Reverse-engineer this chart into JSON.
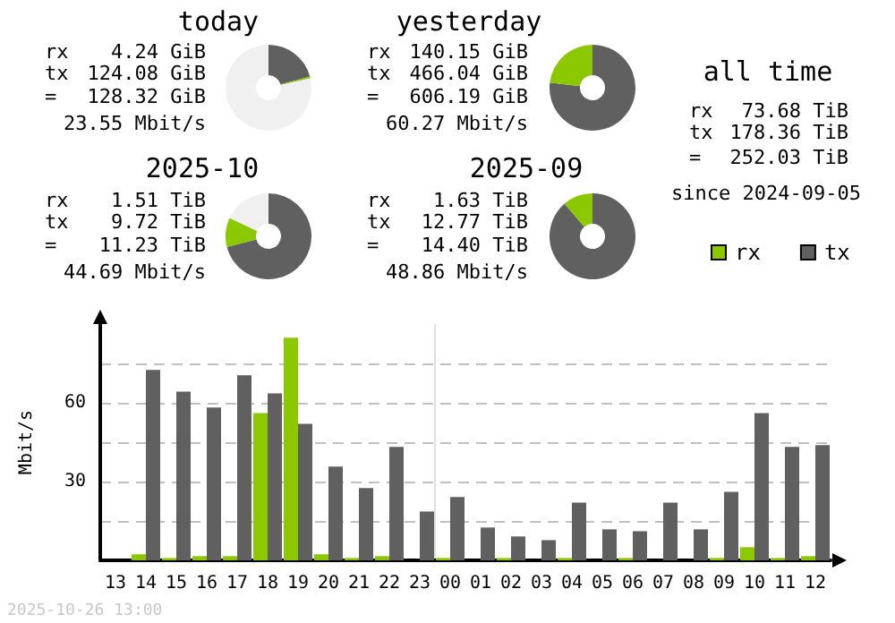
{
  "chart_data": [
    {
      "type": "donut",
      "title": "today",
      "categories": [
        null,
        null,
        null
      ],
      "values": [
        20.8,
        0.7,
        78.5
      ],
      "colors": [
        "#606060",
        "#8bc800",
        "#f0f0f0"
      ],
      "annotations": [
        "rx",
        "4.24 GiB",
        "tx",
        "124.08 GiB",
        "=",
        "128.32 GiB",
        "23.55 Mbit/s"
      ]
    },
    {
      "type": "donut",
      "title": "yesterday",
      "categories": [
        null,
        null
      ],
      "values": [
        76.9,
        23.1
      ],
      "colors": [
        "#606060",
        "#8bc800"
      ],
      "annotations": [
        "rx",
        "140.15 GiB",
        "tx",
        "466.04 GiB",
        "=",
        "606.19 GiB",
        "60.27 Mbit/s"
      ]
    },
    {
      "type": "other",
      "title": "all time",
      "annotations": [
        "rx",
        "73.68 TiB",
        "tx",
        "178.36 TiB",
        "=",
        "252.03 TiB",
        "since 2024-09-05"
      ]
    },
    {
      "type": "donut",
      "title": "2025-10",
      "categories": [
        null,
        null,
        null
      ],
      "values": [
        71.0,
        11.0,
        18.0
      ],
      "colors": [
        "#606060",
        "#8bc800",
        "#f0f0f0"
      ],
      "annotations": [
        "rx",
        "1.51 TiB",
        "tx",
        "9.72 TiB",
        "=",
        "11.23 TiB",
        "44.69 Mbit/s"
      ]
    },
    {
      "type": "donut",
      "title": "2025-09",
      "categories": [
        null,
        null
      ],
      "values": [
        88.7,
        11.3
      ],
      "colors": [
        "#606060",
        "#8bc800"
      ],
      "annotations": [
        "rx",
        "1.63 TiB",
        "tx",
        "12.77 TiB",
        "=",
        "14.40 TiB",
        "48.86 Mbit/s"
      ]
    },
    {
      "type": "bar",
      "ylabel": "Mbit/s",
      "categories": [
        "13",
        "14",
        "15",
        "16",
        "17",
        "18",
        "19",
        "20",
        "21",
        "22",
        "23",
        "00",
        "01",
        "02",
        "03",
        "04",
        "05",
        "06",
        "07",
        "08",
        "09",
        "10",
        "11",
        "12"
      ],
      "series": [
        {
          "name": "rx",
          "color": "#8bc800",
          "values": [
            null,
            2.3,
            0.9,
            1.6,
            1.6,
            56.1,
            84.8,
            2.3,
            0.9,
            1.6,
            0,
            0.9,
            0,
            0.9,
            0,
            0.9,
            0,
            0.9,
            0,
            0,
            0.9,
            5.0,
            0.9,
            1.6
          ]
        },
        {
          "name": "tx",
          "color": "#606060",
          "values": [
            null,
            72.5,
            64.3,
            58.2,
            70.5,
            63.6,
            52.0,
            35.7,
            27.5,
            43.2,
            18.6,
            24.1,
            12.5,
            9.1,
            7.7,
            22.0,
            11.8,
            11.1,
            22.0,
            11.8,
            26.1,
            56.1,
            43.2,
            43.9
          ]
        }
      ],
      "ylim": [
        0,
        90
      ],
      "yticks": [
        {
          "value": 15,
          "label": null
        },
        30,
        {
          "value": 45,
          "label": null
        },
        60,
        {
          "value": 75,
          "label": null
        }
      ],
      "grid": "y",
      "legend": "top right",
      "ref_lines": [
        {
          "axis": "x",
          "value": "00",
          "color": "#e0e0e0"
        }
      ],
      "annotations": [
        "2025-10-26 13:00"
      ]
    }
  ]
}
